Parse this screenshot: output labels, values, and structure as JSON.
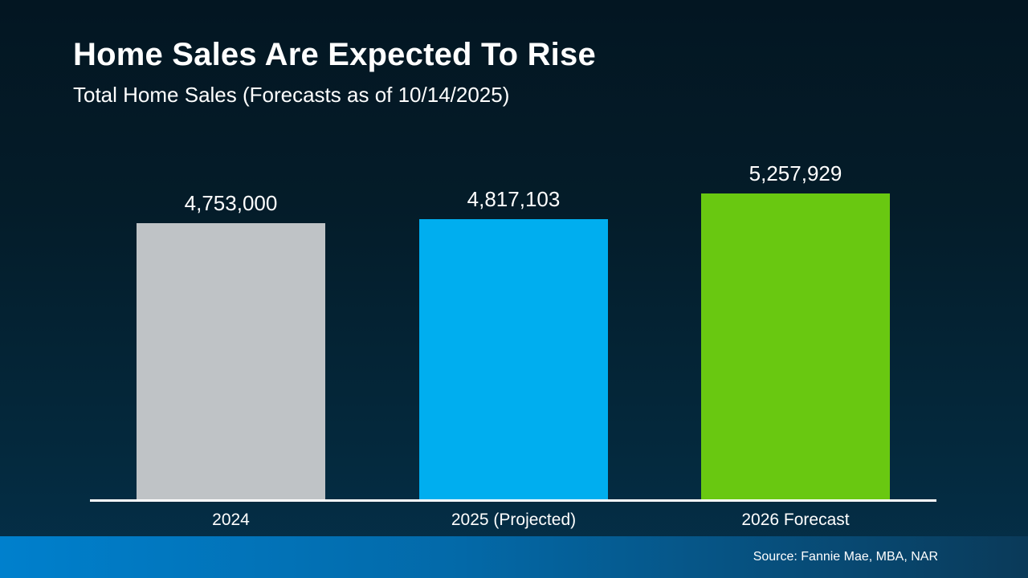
{
  "header": {
    "title": "Home Sales Are Expected To Rise",
    "subtitle": "Total Home Sales (Forecasts as of 10/14/2025)"
  },
  "footer": {
    "source": "Source: Fannie Mae, MBA, NAR"
  },
  "colors": {
    "background_top": "#031622",
    "background_bottom": "#05304a",
    "footer_gradient_left": "#0080cd",
    "footer_gradient_right": "#0a3a59",
    "axis_line": "#ffffff",
    "text": "#ffffff"
  },
  "chart_data": {
    "type": "bar",
    "title": "Home Sales Are Expected To Rise",
    "subtitle": "Total Home Sales (Forecasts as of 10/14/2025)",
    "categories": [
      "2024",
      "2025 (Projected)",
      "2026 Forecast"
    ],
    "values": [
      4753000,
      4817103,
      5257929
    ],
    "value_labels": [
      "4,753,000",
      "4,817,103",
      "5,257,929"
    ],
    "bar_colors": [
      "#bfc3c6",
      "#00aeef",
      "#69c811"
    ],
    "xlabel": "",
    "ylabel": "",
    "ylim": [
      0,
      5400000
    ],
    "grid": false,
    "legend": "none",
    "annotation": "Source: Fannie Mae, MBA, NAR"
  }
}
